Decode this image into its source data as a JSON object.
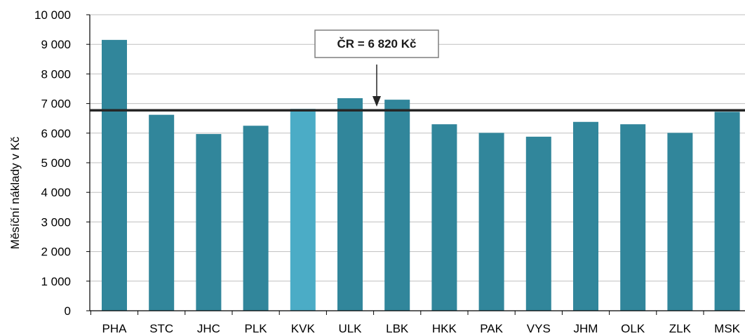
{
  "chart_data": {
    "type": "bar",
    "title": "",
    "xlabel": "",
    "ylabel": "Měsíční náklady v Kč",
    "ylim": [
      0,
      10000
    ],
    "yticks": [
      0,
      1000,
      2000,
      3000,
      4000,
      5000,
      6000,
      7000,
      8000,
      9000,
      10000
    ],
    "ytick_labels": [
      "0",
      "1 000",
      "2 000",
      "3 000",
      "4 000",
      "5 000",
      "6 000",
      "7 000",
      "8 000",
      "9 000",
      "10 000"
    ],
    "grid": true,
    "categories": [
      "PHA",
      "STC",
      "JHC",
      "PLK",
      "KVK",
      "ULK",
      "LBK",
      "HKK",
      "PAK",
      "VYS",
      "JHM",
      "OLK",
      "ZLK",
      "MSK"
    ],
    "values": [
      9150,
      6620,
      5970,
      6250,
      6820,
      7180,
      7130,
      6300,
      6010,
      5880,
      6380,
      6300,
      6010,
      6720
    ],
    "highlight_category": "KVK",
    "bar_color": "#31869B",
    "highlight_color": "#4BACC6",
    "reference_line": {
      "value": 6820,
      "label": "ČR = 6 820 Kč",
      "color": "#262626"
    }
  }
}
